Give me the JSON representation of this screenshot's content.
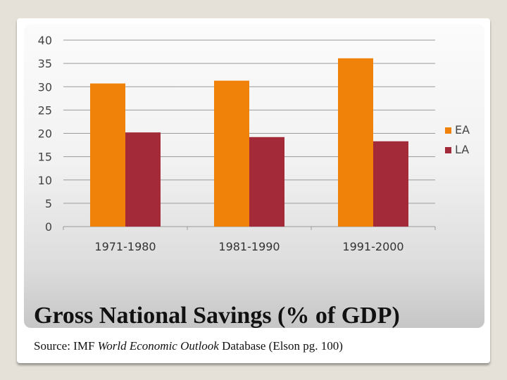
{
  "slide": {
    "title": "Gross National Savings (% of GDP)",
    "source_prefix": "Source: IMF ",
    "source_italic": "World Economic Outlook",
    "source_suffix": " Database (Elson pg. 100)"
  },
  "colors": {
    "EA": "#f0820a",
    "LA": "#a22a39",
    "grid": "#9a9a9a"
  },
  "chart_data": {
    "type": "bar",
    "categories": [
      "1971-1980",
      "1981-1990",
      "1991-2000"
    ],
    "series": [
      {
        "name": "EA",
        "values": [
          30.7,
          31.3,
          36.1
        ]
      },
      {
        "name": "LA",
        "values": [
          20.2,
          19.2,
          18.3
        ]
      }
    ],
    "ylim": [
      0,
      40
    ],
    "yticks": [
      0,
      5,
      10,
      15,
      20,
      25,
      30,
      35,
      40
    ],
    "grid": true,
    "legend": "right"
  }
}
